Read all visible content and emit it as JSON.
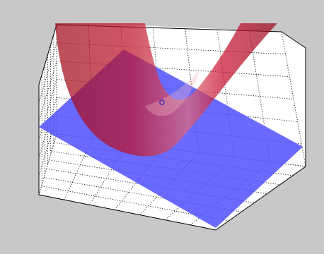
{
  "figure": {
    "background_color": "#c8c8c8",
    "axes_color": "#ffffff",
    "box_line_color": "#000000",
    "grid_color": "#000000"
  },
  "chart_data": {
    "type": "surface",
    "grid": true,
    "box": true,
    "series": [
      {
        "kind": "paraboloid-surface",
        "color": "#c8102e",
        "opacity": 0.72
      },
      {
        "kind": "tangent-plane",
        "color": "#5050ff",
        "opacity": 0.85
      },
      {
        "kind": "point-marker",
        "marker": "circle",
        "color": "#2020c0"
      }
    ]
  }
}
